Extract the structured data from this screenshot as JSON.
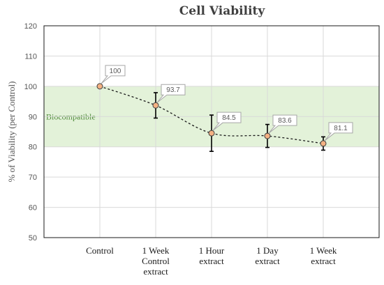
{
  "chart_data": {
    "type": "line",
    "title": "Cell Viability",
    "xlabel": "",
    "ylabel": "% of Viability (per Control)",
    "ylim": [
      50,
      120
    ],
    "yticks": [
      50,
      60,
      70,
      80,
      90,
      100,
      110,
      120
    ],
    "grid": true,
    "categories": [
      [
        "Control"
      ],
      [
        "1 Week",
        "Control",
        "extract"
      ],
      [
        "1 Hour",
        "extract"
      ],
      [
        "1 Day",
        "extract"
      ],
      [
        "1 Week",
        "extract"
      ]
    ],
    "values": [
      100,
      93.7,
      84.5,
      83.6,
      81.1
    ],
    "error": [
      0,
      4.2,
      6.0,
      3.8,
      2.2
    ],
    "data_labels": [
      "100",
      "93.7",
      "84.5",
      "83.6",
      "81.1"
    ],
    "band": {
      "from": 80,
      "to": 100,
      "label": "Biocompatible",
      "color": "#e3f2d9"
    },
    "colors": {
      "marker_fill": "#f4b183",
      "marker_stroke": "#404040",
      "line": "#1a1a1a",
      "grid": "#d9d9d9"
    }
  }
}
